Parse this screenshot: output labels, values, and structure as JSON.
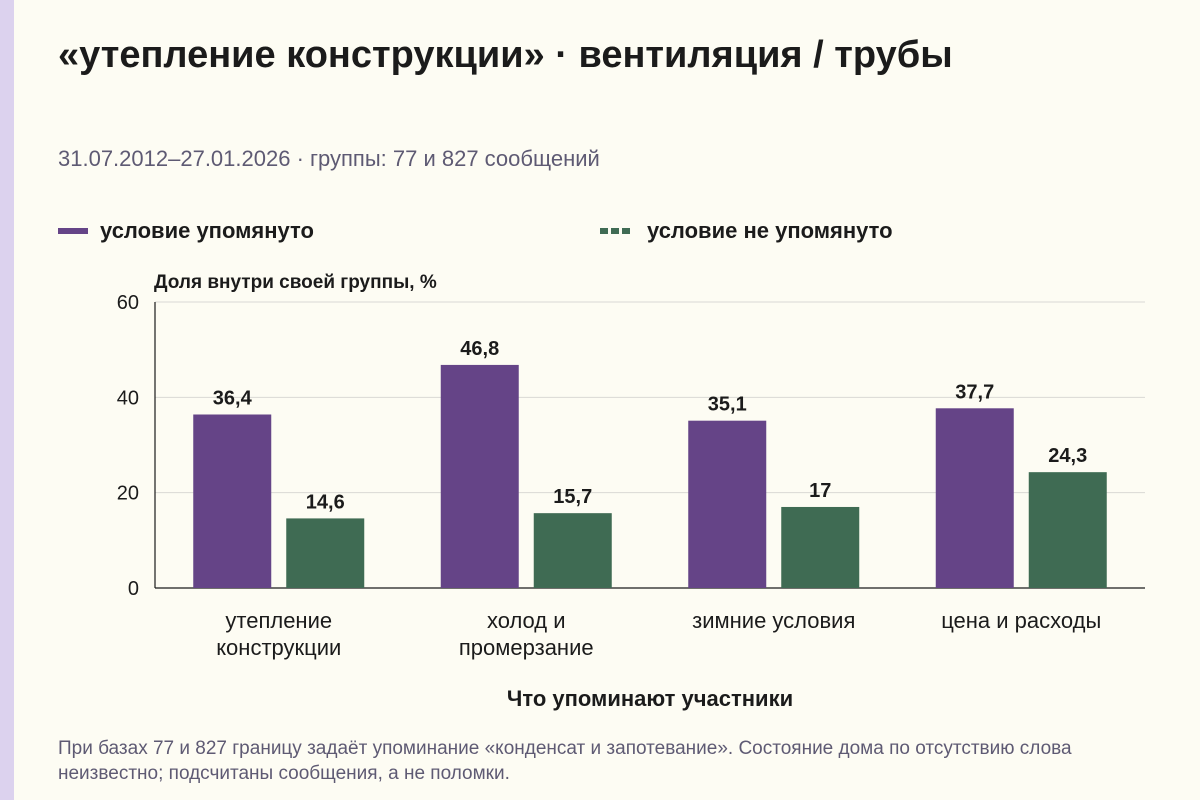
{
  "header": {
    "title": "«утепление конструкции» · вентиляция / трубы",
    "subtitle": "31.07.2012–27.01.2026 · группы: 77 и 827 сообщений"
  },
  "legend": {
    "items": [
      {
        "label": "условие упомянуто",
        "color": "#654487",
        "style": "solid"
      },
      {
        "label": "условие не упомянуто",
        "color": "#3f6b53",
        "style": "dashed"
      }
    ]
  },
  "footnote": "При базах 77 и 827 границу задаёт упоминание «конденсат и запотевание». Состояние дома по отсутствию слова неизвестно; подсчитаны сообщения, а не поломки.",
  "colors": {
    "accent_stripe": "#dcd2ee",
    "background": "#fdfcf3"
  },
  "chart_data": {
    "type": "bar",
    "title": "«утепление конструкции» · вентиляция / трубы",
    "subtitle": "31.07.2012–27.01.2026 · группы: 77 и 827 сообщений",
    "xlabel": "Что упоминают участники",
    "ylabel": "Доля внутри своей группы, %",
    "ylim": [
      0,
      60
    ],
    "yticks": [
      0,
      20,
      40,
      60
    ],
    "ytick_labels": [
      "0",
      "20",
      "40",
      "60"
    ],
    "grid": "horizontal",
    "legend_position": "top",
    "categories": [
      [
        "утепление",
        "конструкции"
      ],
      [
        "холод и",
        "промерзание"
      ],
      [
        "зимние условия"
      ],
      [
        "цена и расходы"
      ]
    ],
    "series": [
      {
        "name": "условие упомянуто",
        "color": "#654487",
        "values": [
          36.4,
          46.8,
          35.1,
          37.7
        ],
        "labels": [
          "36,4",
          "46,8",
          "35,1",
          "37,7"
        ]
      },
      {
        "name": "условие не упомянуто",
        "color": "#3f6b53",
        "values": [
          14.6,
          15.7,
          17,
          24.3
        ],
        "labels": [
          "14,6",
          "15,7",
          "17",
          "24,3"
        ]
      }
    ]
  }
}
